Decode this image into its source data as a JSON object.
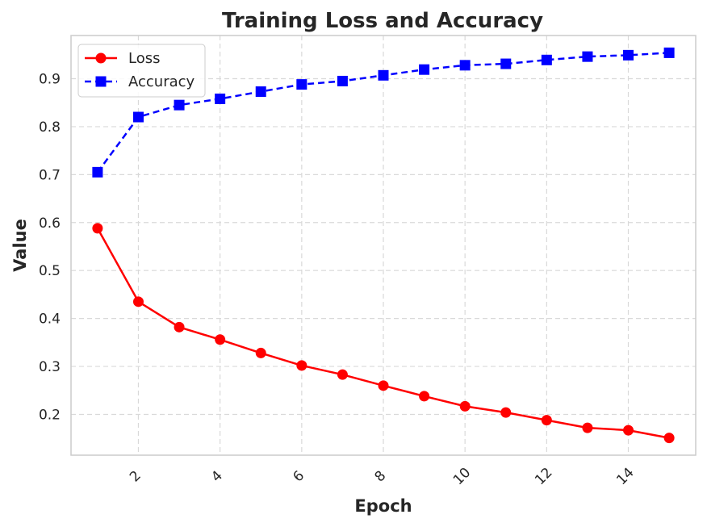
{
  "chart_data": {
    "type": "line",
    "title": "Training Loss and Accuracy",
    "xlabel": "Epoch",
    "ylabel": "Value",
    "x": [
      1,
      2,
      3,
      4,
      5,
      6,
      7,
      8,
      9,
      10,
      11,
      12,
      13,
      14,
      15
    ],
    "xlim": [
      0.35,
      15.65
    ],
    "ylim": [
      0.115,
      0.99
    ],
    "xticks": [
      2,
      4,
      6,
      8,
      10,
      12,
      14
    ],
    "yticks": [
      0.2,
      0.3,
      0.4,
      0.5,
      0.6,
      0.7,
      0.8,
      0.9
    ],
    "ytick_labels": [
      "0.2",
      "0.3",
      "0.4",
      "0.5",
      "0.6",
      "0.7",
      "0.8",
      "0.9"
    ],
    "xtick_labels": [
      "2",
      "4",
      "6",
      "8",
      "10",
      "12",
      "14"
    ],
    "grid": true,
    "legend_position": "top-left",
    "series": [
      {
        "name": "Loss",
        "values": [
          0.588,
          0.435,
          0.382,
          0.356,
          0.328,
          0.302,
          0.283,
          0.26,
          0.238,
          0.217,
          0.204,
          0.188,
          0.172,
          0.167,
          0.151
        ],
        "color": "#ff0000",
        "marker": "circle",
        "linestyle": "solid"
      },
      {
        "name": "Accuracy",
        "values": [
          0.705,
          0.82,
          0.845,
          0.858,
          0.873,
          0.888,
          0.895,
          0.907,
          0.919,
          0.928,
          0.931,
          0.939,
          0.946,
          0.949,
          0.954
        ],
        "color": "#0000ff",
        "marker": "square",
        "linestyle": "dashed"
      }
    ]
  }
}
